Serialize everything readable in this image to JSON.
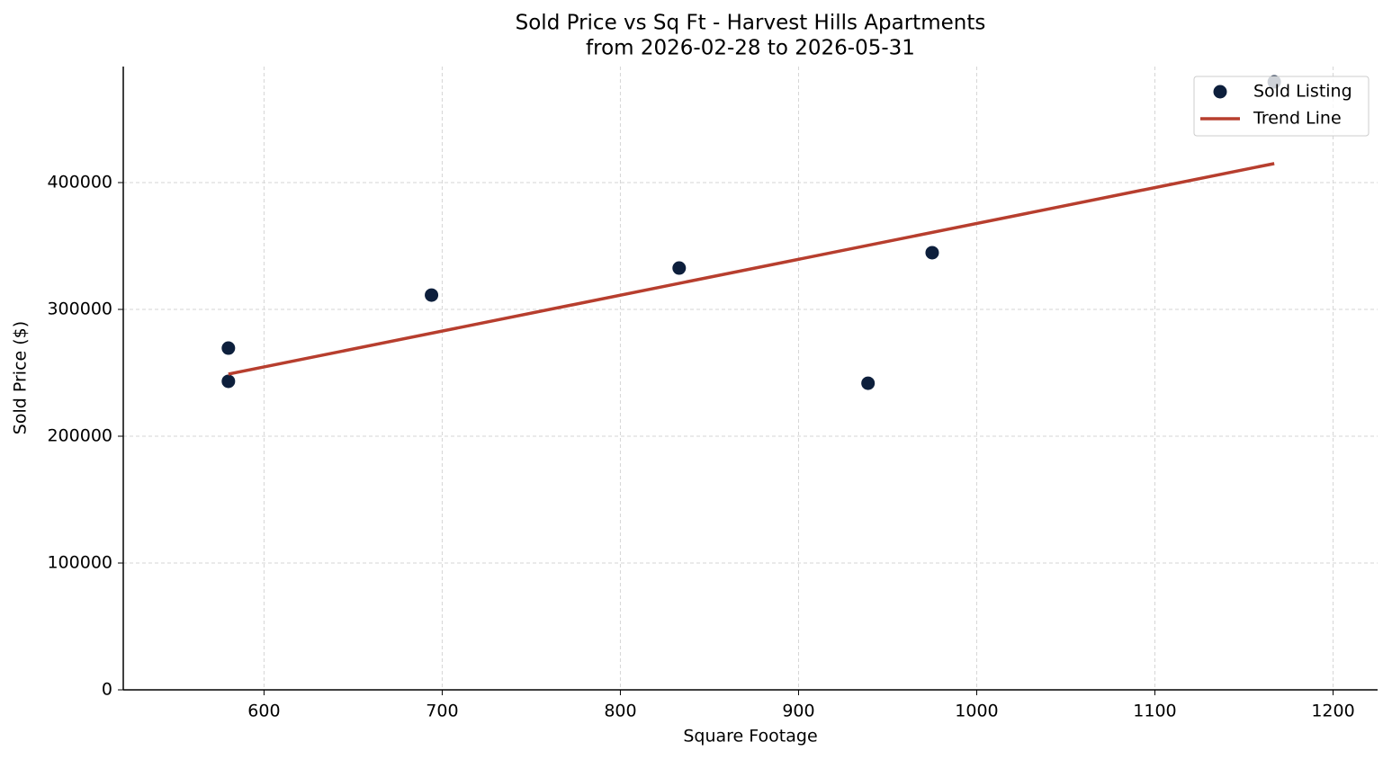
{
  "chart_data": {
    "type": "scatter",
    "title": "Sold Price vs Sq Ft - Harvest Hills Apartments",
    "subtitle": "from 2026-02-28 to 2026-05-31",
    "x_label": "Square Footage",
    "y_label": "Sold Price ($)",
    "series": [
      {
        "name": "Sold Listing",
        "type": "scatter",
        "color": "#0d1f3c",
        "x": [
          580,
          580,
          694,
          833,
          939,
          975,
          1167
        ],
        "values": [
          269500,
          243300,
          311300,
          332600,
          241800,
          344700,
          479400
        ]
      },
      {
        "name": "Trend Line",
        "type": "line",
        "color": "#b73e2e",
        "x": [
          580,
          1167
        ],
        "values": [
          249000,
          415000
        ]
      }
    ],
    "xlim": [
      521,
      1225
    ],
    "ylim": [
      0,
      491500
    ],
    "xticks": [
      600,
      700,
      800,
      900,
      1000,
      1100,
      1200
    ],
    "yticks": [
      0,
      100000,
      200000,
      300000,
      400000
    ],
    "grid": true,
    "legend": "upper right"
  }
}
